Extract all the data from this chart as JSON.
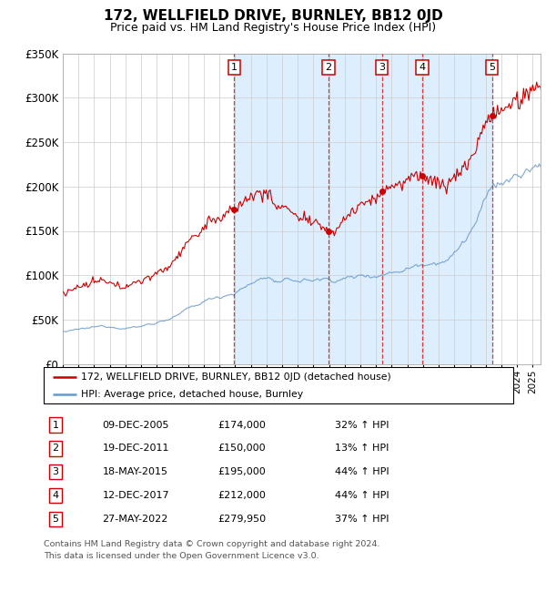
{
  "title": "172, WELLFIELD DRIVE, BURNLEY, BB12 0JD",
  "subtitle": "Price paid vs. HM Land Registry's House Price Index (HPI)",
  "ylim": [
    0,
    350000
  ],
  "yticks": [
    0,
    50000,
    100000,
    150000,
    200000,
    250000,
    300000,
    350000
  ],
  "ytick_labels": [
    "£0",
    "£50K",
    "£100K",
    "£150K",
    "£200K",
    "£250K",
    "£300K",
    "£350K"
  ],
  "xlim_start": 1995.0,
  "xlim_end": 2025.5,
  "sales": [
    {
      "num": 1,
      "date": "09-DEC-2005",
      "year": 2005.94,
      "price": 174000,
      "hpi_pct": "32%"
    },
    {
      "num": 2,
      "date": "19-DEC-2011",
      "year": 2011.96,
      "price": 150000,
      "hpi_pct": "13%"
    },
    {
      "num": 3,
      "date": "18-MAY-2015",
      "year": 2015.38,
      "price": 195000,
      "hpi_pct": "44%"
    },
    {
      "num": 4,
      "date": "12-DEC-2017",
      "year": 2017.95,
      "price": 212000,
      "hpi_pct": "44%"
    },
    {
      "num": 5,
      "date": "27-MAY-2022",
      "year": 2022.4,
      "price": 279950,
      "hpi_pct": "37%"
    }
  ],
  "legend_line1": "172, WELLFIELD DRIVE, BURNLEY, BB12 0JD (detached house)",
  "legend_line2": "HPI: Average price, detached house, Burnley",
  "footer_line1": "Contains HM Land Registry data © Crown copyright and database right 2024.",
  "footer_line2": "This data is licensed under the Open Government Licence v3.0.",
  "red_color": "#cc0000",
  "blue_color": "#6699cc",
  "shade_color": "#ddeeff",
  "grid_color": "#cccccc"
}
